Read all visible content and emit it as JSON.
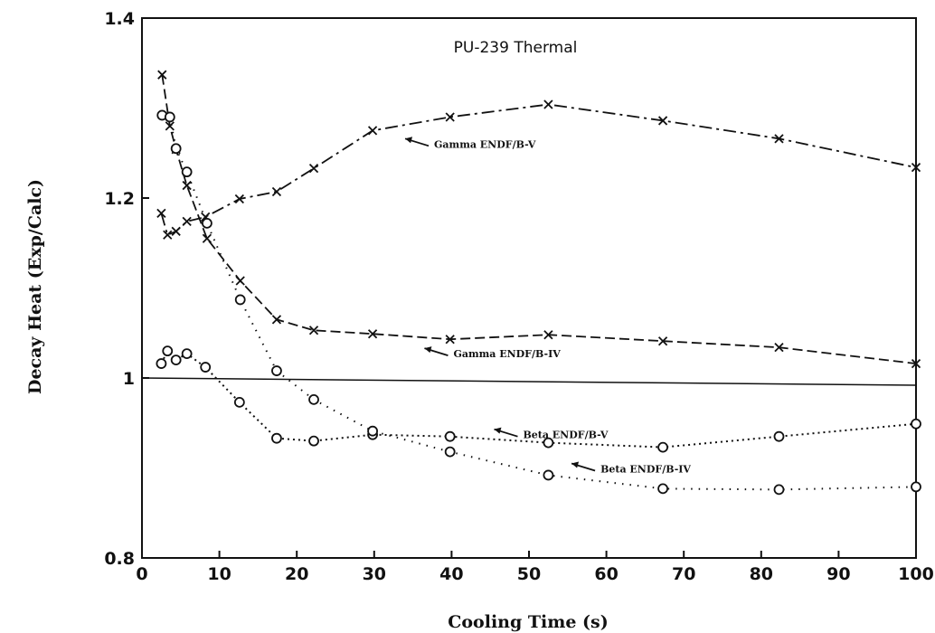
{
  "chart_data": {
    "type": "line",
    "title": "PU-239 Thermal",
    "xlabel": "Cooling Time (s)",
    "ylabel": "Decay Heat (Exp/Calc)",
    "xlim": [
      0,
      100
    ],
    "ylim": [
      0.8,
      1.4
    ],
    "x_ticks": [
      0,
      10,
      20,
      30,
      40,
      50,
      60,
      70,
      80,
      90,
      100
    ],
    "y_ticks": [
      0.8,
      1,
      1.2,
      1.4
    ],
    "y_tick_labels": [
      "0.8",
      "1",
      "1.2",
      "1.4"
    ],
    "reference_line": 1.0,
    "grid": false,
    "legend": "annotations",
    "series": [
      {
        "name": "Gamma ENDF/B-V",
        "marker": "x",
        "dash": "dashdot",
        "x": [
          2.5,
          3.3,
          4.4,
          5.8,
          8.2,
          12.6,
          17.4,
          22.2,
          29.8,
          39.8,
          52.5,
          67.3,
          82.3,
          100
        ],
        "y": [
          1.183,
          1.159,
          1.163,
          1.174,
          1.179,
          1.199,
          1.207,
          1.233,
          1.275,
          1.29,
          1.304,
          1.286,
          1.266,
          1.234
        ]
      },
      {
        "name": "Gamma ENDF/B-IV",
        "marker": "x",
        "dash": "dash",
        "x": [
          2.6,
          3.6,
          4.4,
          5.8,
          8.4,
          12.7,
          17.4,
          22.2,
          29.8,
          39.8,
          52.5,
          67.3,
          82.3,
          100
        ],
        "y": [
          1.337,
          1.28,
          1.254,
          1.214,
          1.155,
          1.108,
          1.065,
          1.053,
          1.049,
          1.043,
          1.048,
          1.041,
          1.034,
          1.016
        ]
      },
      {
        "name": "Beta ENDF/B-V",
        "marker": "o",
        "dash": "dot",
        "x": [
          2.5,
          3.3,
          4.4,
          5.8,
          8.2,
          12.6,
          17.4,
          22.2,
          29.8,
          39.8,
          52.5,
          67.3,
          82.3,
          100
        ],
        "y": [
          1.016,
          1.03,
          1.02,
          1.027,
          1.012,
          0.973,
          0.933,
          0.93,
          0.937,
          0.935,
          0.928,
          0.923,
          0.935,
          0.949
        ]
      },
      {
        "name": "Beta ENDF/B-IV",
        "marker": "o",
        "dash": "dot-sparse",
        "x": [
          2.6,
          3.6,
          4.4,
          5.8,
          8.4,
          12.7,
          17.4,
          22.2,
          29.8,
          39.8,
          52.5,
          67.3,
          82.3,
          100
        ],
        "y": [
          1.292,
          1.29,
          1.255,
          1.229,
          1.172,
          1.087,
          1.008,
          0.976,
          0.941,
          0.918,
          0.892,
          0.877,
          0.876,
          0.879
        ]
      }
    ],
    "annotations": [
      {
        "text": "Gamma ENDF/B-V",
        "target_series": 0,
        "x": 34,
        "y": 1.26
      },
      {
        "text": "Gamma ENDF/B-IV",
        "target_series": 1,
        "x": 36.5,
        "y": 1.027
      },
      {
        "text": "Beta ENDF/B-V",
        "target_series": 2,
        "x": 45.5,
        "y": 0.937
      },
      {
        "text": "Beta ENDF/B-IV",
        "target_series": 3,
        "x": 55.5,
        "y": 0.899
      }
    ]
  }
}
